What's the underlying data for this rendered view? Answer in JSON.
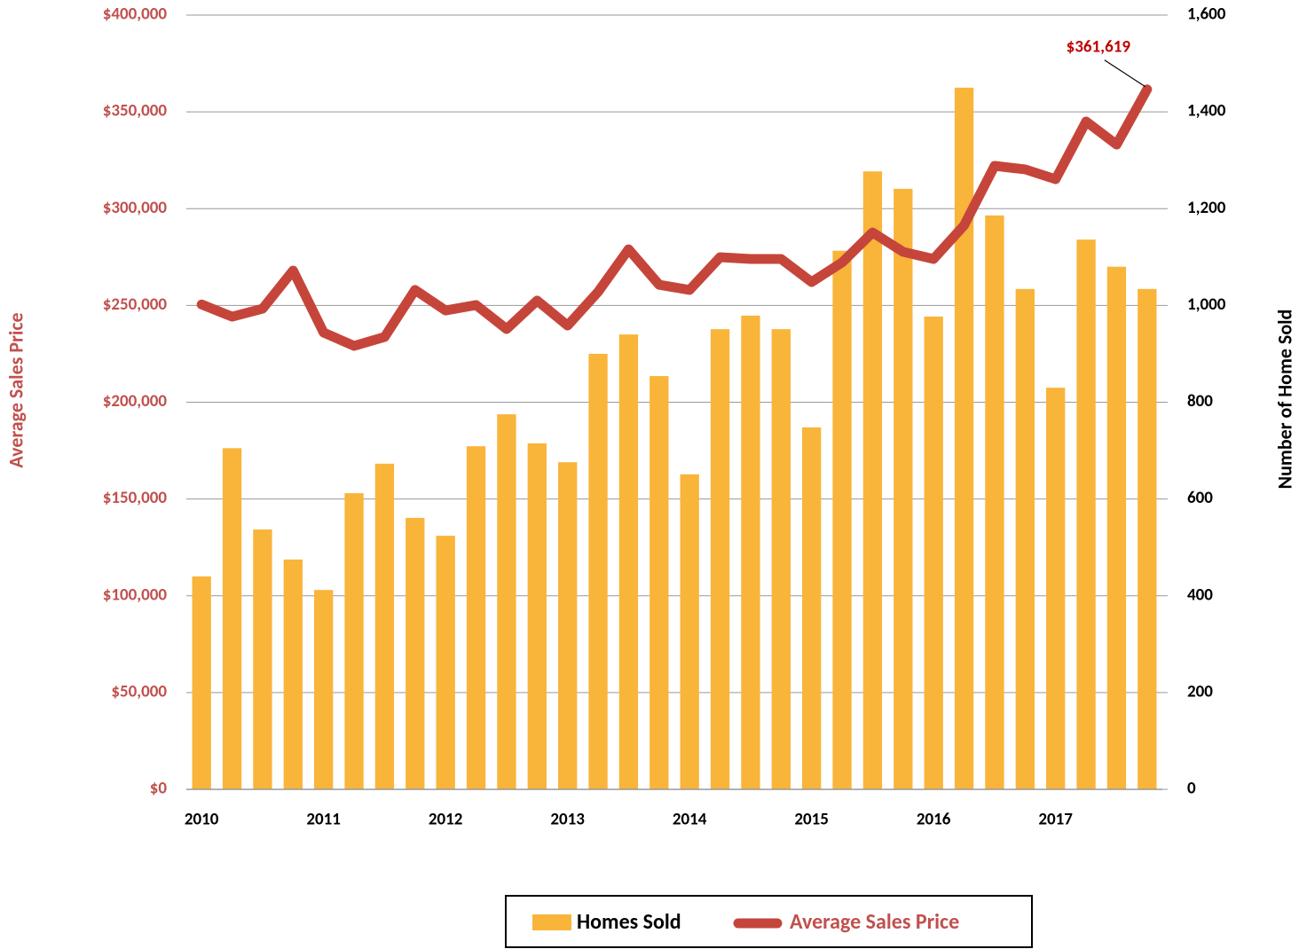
{
  "chart_data": {
    "type": "bar_line",
    "categories": [
      "2010",
      null,
      null,
      null,
      "2011",
      null,
      null,
      null,
      "2012",
      null,
      null,
      null,
      "2013",
      null,
      null,
      null,
      "2014",
      null,
      null,
      null,
      "2015",
      null,
      null,
      null,
      "2016",
      null,
      null,
      null,
      "2017",
      null,
      null,
      null
    ],
    "series": [
      {
        "name": "Homes Sold",
        "type": "bar",
        "axis": "y2",
        "color": "#F9B43A",
        "values": [
          440,
          705,
          537,
          475,
          412,
          612,
          673,
          561,
          524,
          709,
          775,
          715,
          676,
          900,
          940,
          854,
          651,
          951,
          979,
          951,
          748,
          1113,
          1277,
          1241,
          977,
          1450,
          1186,
          1034,
          830,
          1136,
          1080,
          1034
        ]
      },
      {
        "name": "Average Sales Price",
        "type": "line",
        "axis": "y",
        "color": "#C6453A",
        "values": [
          250500,
          244200,
          248300,
          268000,
          236000,
          229100,
          233700,
          258000,
          247400,
          250200,
          237800,
          252500,
          239600,
          257000,
          279000,
          260700,
          258000,
          274900,
          274000,
          274000,
          262100,
          272200,
          287700,
          277700,
          274000,
          291400,
          322100,
          320300,
          315200,
          345000,
          333100,
          361619
        ],
        "value_labels": [
          null,
          null,
          null,
          null,
          null,
          null,
          null,
          null,
          null,
          null,
          null,
          null,
          null,
          null,
          null,
          null,
          null,
          null,
          null,
          null,
          null,
          null,
          null,
          null,
          null,
          null,
          null,
          null,
          null,
          null,
          null,
          "$361,619"
        ]
      }
    ],
    "ylabel": "Average Sales Price",
    "y2label": "Number of Home Sold",
    "ylim": [
      0,
      400000
    ],
    "yticks": [
      {
        "value": 0,
        "label": "$0"
      },
      {
        "value": 50000,
        "label": "$50,000"
      },
      {
        "value": 100000,
        "label": "$100,000"
      },
      {
        "value": 150000,
        "label": "$150,000"
      },
      {
        "value": 200000,
        "label": "$200,000"
      },
      {
        "value": 250000,
        "label": "$250,000"
      },
      {
        "value": 300000,
        "label": "$300,000"
      },
      {
        "value": 350000,
        "label": "$350,000"
      },
      {
        "value": 400000,
        "label": "$400,000"
      }
    ],
    "y2lim": [
      0,
      1600
    ],
    "y2ticks": [
      0,
      200,
      400,
      600,
      800,
      {
        "value": 1000,
        "label": "1,000"
      },
      {
        "value": 1200,
        "label": "1,200"
      },
      {
        "value": 1400,
        "label": "1,400"
      },
      {
        "value": 1600,
        "label": "1,600"
      }
    ],
    "grid": true,
    "legend": "bottom"
  }
}
